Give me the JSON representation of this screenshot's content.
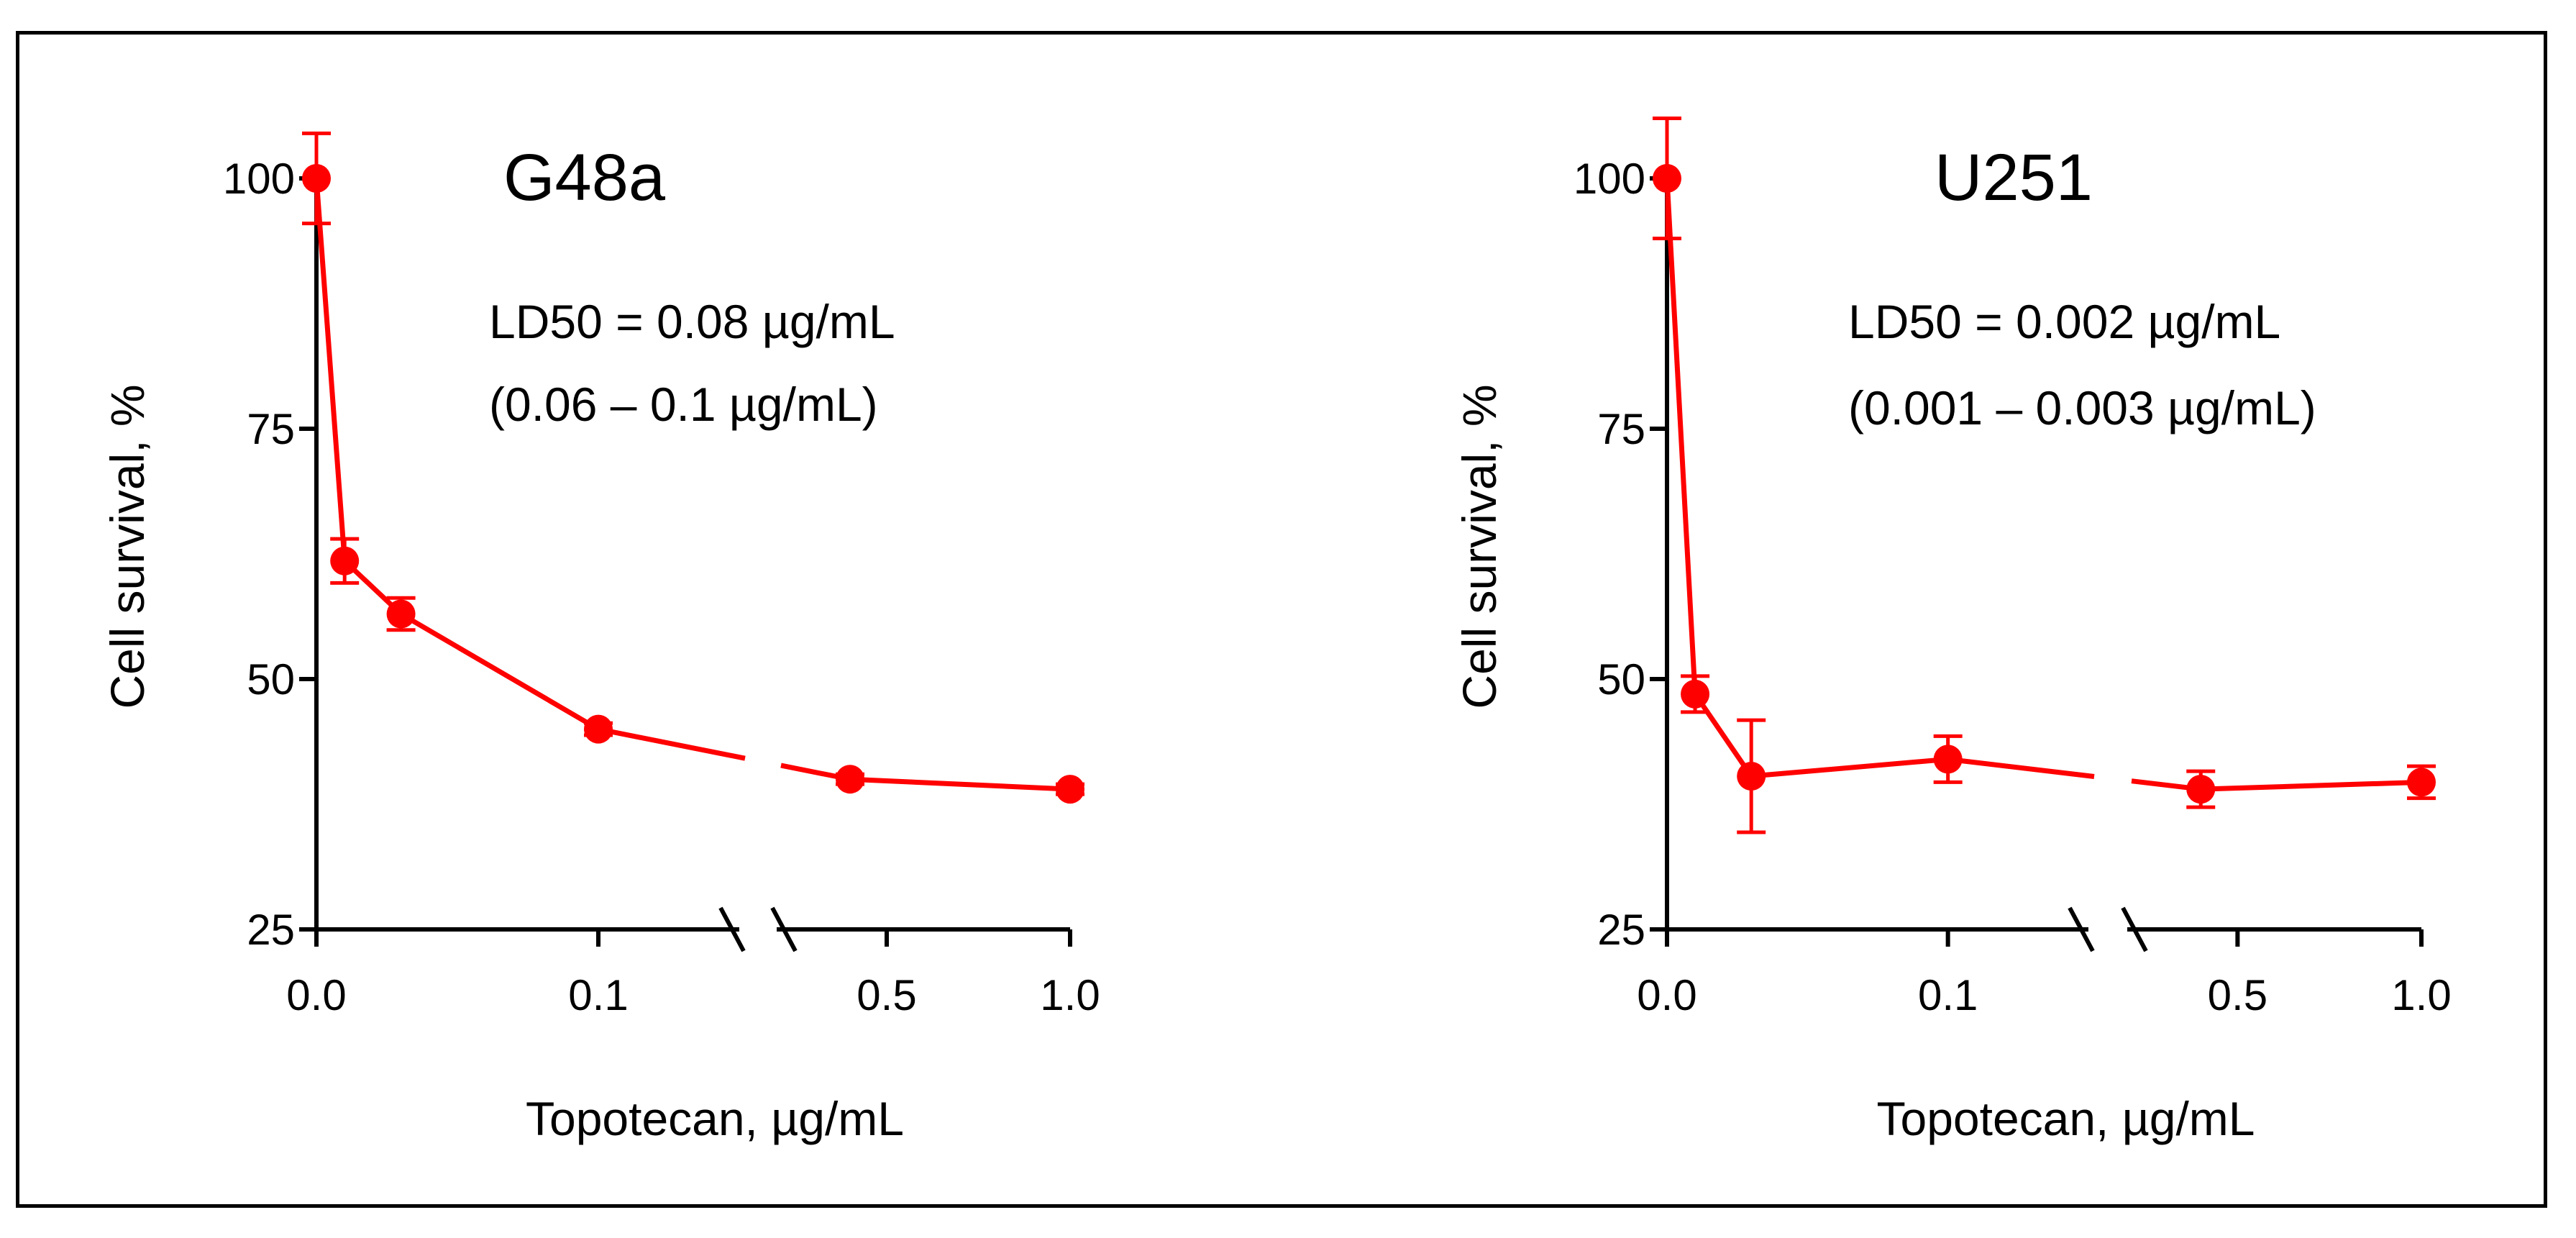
{
  "colors": {
    "series": "#ff0000",
    "axis": "#000000",
    "background": "#ffffff"
  },
  "chart_data": [
    {
      "type": "line",
      "title": "G48a",
      "annotations": [
        "LD50 = 0.08 µg/mL",
        "(0.06 – 0.1 µg/mL)"
      ],
      "xlabel": "Topotecan, µg/mL",
      "ylabel": "Cell survival, %",
      "ylim": [
        25,
        100
      ],
      "yticks": [
        25,
        50,
        75,
        100
      ],
      "ytick_labels": [
        "25",
        "50",
        "75",
        "100"
      ],
      "x_axis_break": true,
      "xsegments": [
        {
          "range": [
            0,
            0.15
          ],
          "ticks": [
            0,
            0.1
          ],
          "tick_labels": [
            "0.0",
            "0.1"
          ]
        },
        {
          "range": [
            0.2,
            1.0
          ],
          "ticks": [
            0.5,
            1.0
          ],
          "tick_labels": [
            "0.5",
            "1.0"
          ]
        }
      ],
      "series": [
        {
          "name": "G48a",
          "x": [
            0,
            0.01,
            0.03,
            0.1,
            0.4,
            1.0
          ],
          "y": [
            100,
            61.8,
            56.5,
            45,
            40,
            39
          ],
          "yerr": [
            4.5,
            2.2,
            1.6,
            0.6,
            0.5,
            0.5
          ]
        }
      ]
    },
    {
      "type": "line",
      "title": "U251",
      "annotations": [
        "LD50 = 0.002 µg/mL",
        "(0.001 – 0.003 µg/mL)"
      ],
      "xlabel": "Topotecan, µg/mL",
      "ylabel": "Cell survival, %",
      "ylim": [
        25,
        100
      ],
      "yticks": [
        25,
        50,
        75,
        100
      ],
      "ytick_labels": [
        "25",
        "50",
        "75",
        "100"
      ],
      "x_axis_break": true,
      "xsegments": [
        {
          "range": [
            0,
            0.15
          ],
          "ticks": [
            0,
            0.1
          ],
          "tick_labels": [
            "0.0",
            "0.1"
          ]
        },
        {
          "range": [
            0.2,
            1.0
          ],
          "ticks": [
            0.5,
            1.0
          ],
          "tick_labels": [
            "0.5",
            "1.0"
          ]
        }
      ],
      "series": [
        {
          "name": "U251",
          "x": [
            0,
            0.01,
            0.03,
            0.1,
            0.4,
            1.0
          ],
          "y": [
            100,
            48.5,
            40.3,
            42,
            39,
            39.7
          ],
          "yerr": [
            6,
            1.8,
            5.6,
            2.3,
            1.8,
            1.6
          ]
        }
      ]
    }
  ]
}
